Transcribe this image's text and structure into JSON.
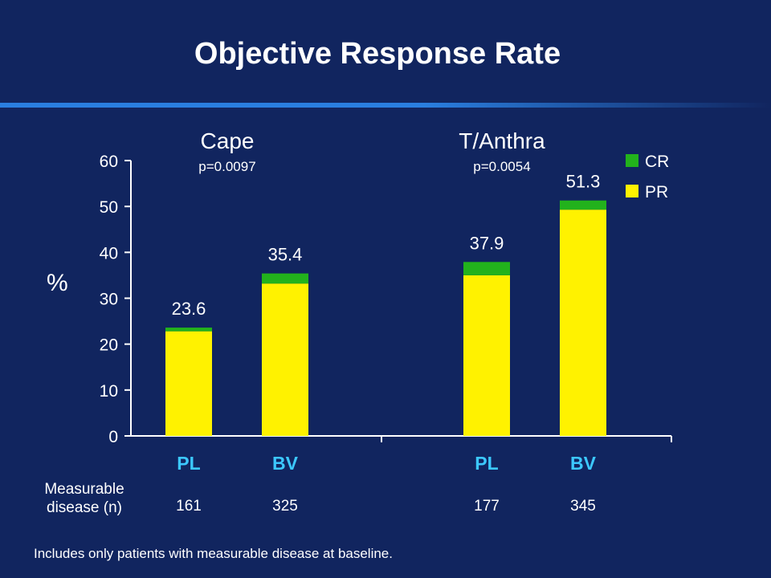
{
  "title": "Objective Response Rate",
  "ylabel": "%",
  "groups": [
    {
      "name": "Cape",
      "pvalue": "p=0.0097"
    },
    {
      "name": "T/Anthra",
      "pvalue": "p=0.0054"
    }
  ],
  "measurable_label": "Measurable disease (n)",
  "n_values": [
    "161",
    "325",
    "177",
    "345"
  ],
  "footnote": "Includes only patients with measurable disease at baseline.",
  "colors": {
    "cr": "#22b21c",
    "pr": "#fff200",
    "arm_label": "#3cc8ff",
    "background": "#11255f"
  },
  "chart_data": {
    "type": "bar",
    "stacked": true,
    "categories": [
      "PL",
      "BV",
      "PL",
      "BV"
    ],
    "series": [
      {
        "name": "PR",
        "values": [
          22.8,
          33.2,
          35.0,
          49.3
        ]
      },
      {
        "name": "CR",
        "values": [
          0.8,
          2.2,
          2.9,
          2.0
        ]
      }
    ],
    "totals": [
      "23.6",
      "35.4",
      "37.9",
      "51.3"
    ],
    "yticks": [
      0,
      10,
      20,
      30,
      40,
      50,
      60
    ],
    "ylim": [
      0,
      60
    ],
    "ylabel": "%",
    "legend": [
      "CR",
      "PR"
    ],
    "legend_position": "top-right"
  }
}
